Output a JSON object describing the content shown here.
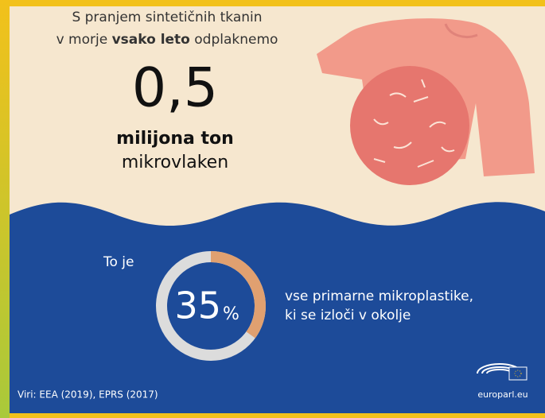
{
  "header": {
    "line1": "S pranjem sintetičnih tkanin",
    "line2_start": "v morje ",
    "line2_bold": "vsako leto",
    "line2_end": " odplaknemo",
    "amount": "0,5",
    "unit": "milijona ton",
    "material": "mikrovlaken"
  },
  "share": {
    "intro": "To je",
    "value": 35,
    "unit": "%",
    "text1": "vse primarne mikroplastike,",
    "text2": "ki se izloči v okolje"
  },
  "footer": {
    "sources": "Viri: EEA (2019), EPRS (2017)",
    "site": "europarl.eu"
  }
}
